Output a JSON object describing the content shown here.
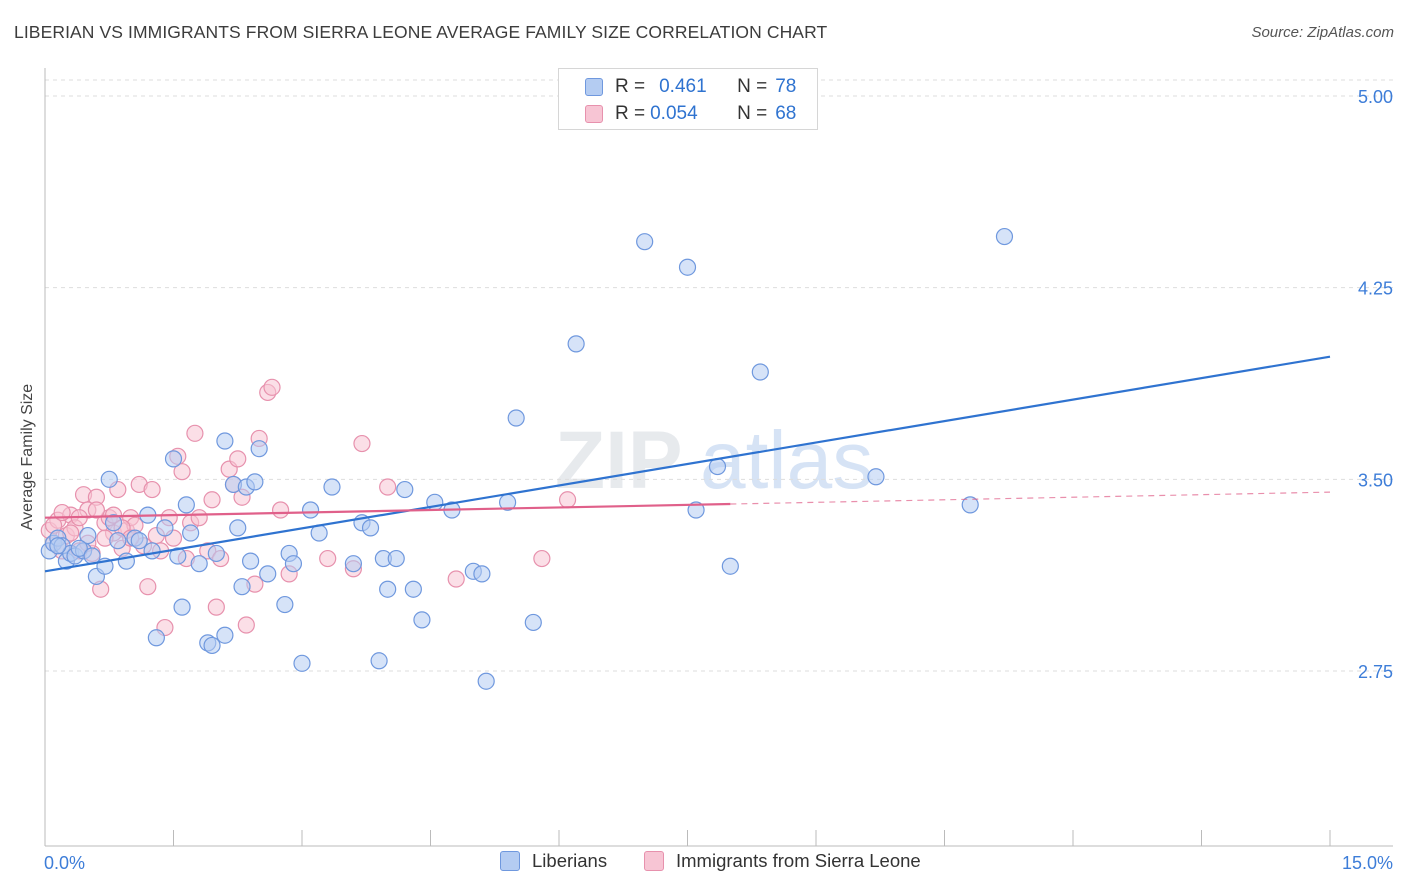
{
  "header": {
    "title": "LIBERIAN VS IMMIGRANTS FROM SIERRA LEONE AVERAGE FAMILY SIZE CORRELATION CHART",
    "source": "Source: ZipAtlas.com"
  },
  "watermark": {
    "part1": "ZIP",
    "part2": "atlas"
  },
  "legend_top": [
    {
      "r_label": "R =",
      "r_value": "0.461",
      "n_label": "N =",
      "n_value": "78"
    },
    {
      "r_label": "R =",
      "r_value": "0.054",
      "n_label": "N =",
      "n_value": "68"
    }
  ],
  "colors": {
    "blue_fill": "#b4ccf2",
    "blue_stroke": "#6f98de",
    "blue_line": "#2f73d0",
    "pink_fill": "#f7c5d4",
    "pink_stroke": "#e791ad",
    "pink_line": "#e0608a",
    "tick_text": "#3d7dd8",
    "grid": "#dddddd"
  },
  "chart_data": {
    "type": "scatter",
    "title": "LIBERIAN VS IMMIGRANTS FROM SIERRA LEONE AVERAGE FAMILY SIZE CORRELATION CHART",
    "xlabel": "",
    "ylabel": "Average Family Size",
    "xlim": [
      0,
      15
    ],
    "ylim": [
      2.0,
      5.1
    ],
    "x_tick_labels": [
      "0.0%",
      "15.0%"
    ],
    "y_ticks": [
      2.75,
      3.5,
      4.25,
      5.0
    ],
    "y_tick_labels": [
      "2.75",
      "3.50",
      "4.25",
      "5.00"
    ],
    "grid": "horizontal dashed",
    "legend_position": "top-center",
    "series": [
      {
        "name": "Liberians",
        "color": "#6f98de",
        "trend": {
          "x0": 0.0,
          "y0": 3.14,
          "x1": 15.0,
          "y1": 3.98,
          "dashed_from": null
        },
        "points": [
          [
            0.05,
            3.22
          ],
          [
            0.1,
            3.25
          ],
          [
            0.15,
            3.27
          ],
          [
            0.2,
            3.24
          ],
          [
            0.25,
            3.18
          ],
          [
            0.3,
            3.21
          ],
          [
            0.35,
            3.2
          ],
          [
            0.45,
            3.22
          ],
          [
            0.5,
            3.28
          ],
          [
            0.6,
            3.12
          ],
          [
            0.7,
            3.16
          ],
          [
            0.75,
            3.5
          ],
          [
            0.8,
            3.33
          ],
          [
            0.85,
            3.26
          ],
          [
            0.95,
            3.18
          ],
          [
            1.05,
            3.27
          ],
          [
            1.1,
            3.26
          ],
          [
            1.2,
            3.36
          ],
          [
            1.25,
            3.22
          ],
          [
            1.3,
            2.88
          ],
          [
            1.4,
            3.31
          ],
          [
            1.5,
            3.58
          ],
          [
            1.55,
            3.2
          ],
          [
            1.6,
            3.0
          ],
          [
            1.65,
            3.4
          ],
          [
            1.7,
            3.29
          ],
          [
            1.8,
            3.17
          ],
          [
            1.9,
            2.86
          ],
          [
            1.95,
            2.85
          ],
          [
            2.0,
            3.21
          ],
          [
            2.1,
            2.89
          ],
          [
            2.1,
            3.65
          ],
          [
            2.2,
            3.48
          ],
          [
            2.25,
            3.31
          ],
          [
            2.3,
            3.08
          ],
          [
            2.35,
            3.47
          ],
          [
            2.4,
            3.18
          ],
          [
            2.45,
            3.49
          ],
          [
            2.5,
            3.62
          ],
          [
            2.6,
            3.13
          ],
          [
            2.8,
            3.01
          ],
          [
            2.85,
            3.21
          ],
          [
            2.9,
            3.17
          ],
          [
            3.0,
            2.78
          ],
          [
            3.1,
            3.38
          ],
          [
            3.2,
            3.29
          ],
          [
            3.35,
            3.47
          ],
          [
            3.6,
            3.17
          ],
          [
            3.7,
            3.33
          ],
          [
            3.8,
            3.31
          ],
          [
            3.9,
            2.79
          ],
          [
            3.95,
            3.19
          ],
          [
            4.0,
            3.07
          ],
          [
            4.1,
            3.19
          ],
          [
            4.2,
            3.46
          ],
          [
            4.3,
            3.07
          ],
          [
            4.4,
            2.95
          ],
          [
            4.55,
            3.41
          ],
          [
            4.75,
            3.38
          ],
          [
            5.0,
            3.14
          ],
          [
            5.1,
            3.13
          ],
          [
            5.15,
            2.71
          ],
          [
            5.4,
            3.41
          ],
          [
            5.5,
            3.74
          ],
          [
            5.7,
            2.94
          ],
          [
            6.2,
            4.03
          ],
          [
            7.0,
            4.43
          ],
          [
            7.5,
            4.33
          ],
          [
            7.6,
            3.38
          ],
          [
            7.85,
            3.55
          ],
          [
            8.0,
            3.16
          ],
          [
            8.35,
            3.92
          ],
          [
            9.7,
            3.51
          ],
          [
            10.8,
            3.4
          ],
          [
            11.2,
            4.45
          ],
          [
            0.15,
            3.24
          ],
          [
            0.4,
            3.23
          ],
          [
            0.55,
            3.2
          ]
        ]
      },
      {
        "name": "Immigrants from Sierra Leone",
        "color": "#e791ad",
        "trend": {
          "x0": 0.0,
          "y0": 3.35,
          "x1": 15.0,
          "y1": 3.45,
          "dashed_from": 8.0
        },
        "points": [
          [
            0.05,
            3.3
          ],
          [
            0.1,
            3.25
          ],
          [
            0.15,
            3.34
          ],
          [
            0.2,
            3.22
          ],
          [
            0.25,
            3.28
          ],
          [
            0.3,
            3.36
          ],
          [
            0.35,
            3.31
          ],
          [
            0.4,
            3.22
          ],
          [
            0.45,
            3.44
          ],
          [
            0.5,
            3.38
          ],
          [
            0.55,
            3.21
          ],
          [
            0.6,
            3.43
          ],
          [
            0.65,
            3.07
          ],
          [
            0.7,
            3.33
          ],
          [
            0.75,
            3.35
          ],
          [
            0.8,
            3.29
          ],
          [
            0.85,
            3.46
          ],
          [
            0.9,
            3.23
          ],
          [
            0.95,
            3.3
          ],
          [
            1.0,
            3.35
          ],
          [
            1.05,
            3.32
          ],
          [
            1.1,
            3.48
          ],
          [
            1.15,
            3.24
          ],
          [
            1.2,
            3.08
          ],
          [
            1.25,
            3.46
          ],
          [
            1.3,
            3.28
          ],
          [
            1.35,
            3.22
          ],
          [
            1.4,
            2.92
          ],
          [
            1.45,
            3.35
          ],
          [
            1.5,
            3.27
          ],
          [
            1.55,
            3.59
          ],
          [
            1.6,
            3.53
          ],
          [
            1.65,
            3.19
          ],
          [
            1.7,
            3.33
          ],
          [
            1.75,
            3.68
          ],
          [
            1.8,
            3.35
          ],
          [
            1.9,
            3.22
          ],
          [
            1.95,
            3.42
          ],
          [
            2.0,
            3.0
          ],
          [
            2.05,
            3.19
          ],
          [
            2.15,
            3.54
          ],
          [
            2.2,
            3.48
          ],
          [
            2.25,
            3.58
          ],
          [
            2.3,
            3.43
          ],
          [
            2.35,
            2.93
          ],
          [
            2.45,
            3.09
          ],
          [
            2.5,
            3.66
          ],
          [
            2.6,
            3.84
          ],
          [
            2.65,
            3.86
          ],
          [
            2.75,
            3.38
          ],
          [
            2.85,
            3.13
          ],
          [
            3.3,
            3.19
          ],
          [
            3.6,
            3.15
          ],
          [
            3.7,
            3.64
          ],
          [
            4.0,
            3.47
          ],
          [
            4.8,
            3.11
          ],
          [
            5.8,
            3.19
          ],
          [
            6.1,
            3.42
          ],
          [
            0.1,
            3.32
          ],
          [
            0.2,
            3.37
          ],
          [
            0.3,
            3.29
          ],
          [
            0.4,
            3.35
          ],
          [
            0.5,
            3.25
          ],
          [
            0.6,
            3.38
          ],
          [
            0.7,
            3.27
          ],
          [
            0.8,
            3.36
          ],
          [
            0.9,
            3.31
          ],
          [
            1.0,
            3.27
          ]
        ]
      }
    ]
  },
  "legend_bottom": [
    {
      "label": "Liberians"
    },
    {
      "label": "Immigrants from Sierra Leone"
    }
  ]
}
